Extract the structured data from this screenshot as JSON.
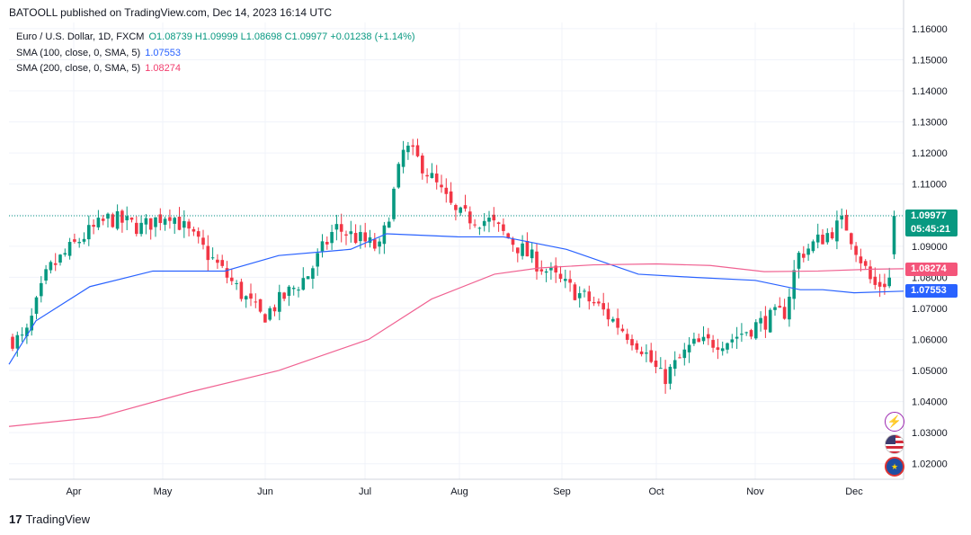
{
  "header": "BATOOLL published on TradingView.com, Dec 14, 2023 16:14 UTC",
  "legend": {
    "symbol": "Euro / U.S. Dollar, 1D, FXCM",
    "ohlc": "O1.08739  H1.09999  L1.08698  C1.09977  +0.01238 (+1.14%)",
    "sma100_label": "SMA (100, close, 0, SMA, 5)",
    "sma100_value": "1.07553",
    "sma200_label": "SMA (200, close, 0, SMA, 5)",
    "sma200_value": "1.08274"
  },
  "price_tag": {
    "price": "1.09977",
    "countdown": "05:45:21"
  },
  "sma200_tag": "1.08274",
  "sma100_tag": "1.07553",
  "footer": {
    "logo": "17",
    "brand": "TradingView"
  },
  "colors": {
    "up": "#089981",
    "down": "#f23645",
    "sma100": "#2962ff",
    "sma200": "#f06292"
  },
  "icons": [
    "flash-icon",
    "us-flag-icon",
    "eu-flag-icon"
  ],
  "chart_data": {
    "type": "candlestick",
    "title": "Euro / U.S. Dollar, 1D, FXCM",
    "ylim": [
      1.015,
      1.162
    ],
    "y_ticks": [
      "1.16000",
      "1.15000",
      "1.14000",
      "1.13000",
      "1.12000",
      "1.11000",
      "1.10000",
      "1.09000",
      "1.08000",
      "1.07000",
      "1.06000",
      "1.05000",
      "1.04000",
      "1.03000",
      "1.02000"
    ],
    "x_ticks": [
      "Apr",
      "May",
      "Jun",
      "Jul",
      "Aug",
      "Sep",
      "Oct",
      "Nov",
      "Dec"
    ],
    "last_price": 1.09977,
    "close_path_keypoints": [
      [
        "Mar 15",
        1.06
      ],
      [
        "Mar 23",
        1.082
      ],
      [
        "Apr 04",
        1.093
      ],
      [
        "Apr 13",
        1.099
      ],
      [
        "Apr 24",
        1.096
      ],
      [
        "May 03",
        1.101
      ],
      [
        "May 15",
        1.087
      ],
      [
        "May 31",
        1.067
      ],
      [
        "Jun 14",
        1.081
      ],
      [
        "Jun 22",
        1.096
      ],
      [
        "Jul 06",
        1.089
      ],
      [
        "Jul 14",
        1.122
      ],
      [
        "Jul 20",
        1.116
      ],
      [
        "Jul 31",
        1.1
      ],
      [
        "Aug 10",
        1.098
      ],
      [
        "Aug 24",
        1.085
      ],
      [
        "Sep 01",
        1.078
      ],
      [
        "Sep 12",
        1.071
      ],
      [
        "Sep 26",
        1.058
      ],
      [
        "Oct 03",
        1.047
      ],
      [
        "Oct 12",
        1.058
      ],
      [
        "Oct 24",
        1.06
      ],
      [
        "Nov 02",
        1.065
      ],
      [
        "Nov 10",
        1.069
      ],
      [
        "Nov 14",
        1.087
      ],
      [
        "Nov 28",
        1.098
      ],
      [
        "Dec 07",
        1.077
      ],
      [
        "Dec 12",
        1.079
      ],
      [
        "Dec 14",
        1.09977
      ]
    ],
    "series": [
      {
        "name": "SMA (100, close, 0, SMA, 5)",
        "last": 1.07553,
        "keypoints": [
          [
            0,
            1.052
          ],
          [
            30,
            1.066
          ],
          [
            90,
            1.077
          ],
          [
            160,
            1.082
          ],
          [
            240,
            1.082
          ],
          [
            300,
            1.087
          ],
          [
            380,
            1.089
          ],
          [
            420,
            1.094
          ],
          [
            500,
            1.093
          ],
          [
            550,
            1.093
          ],
          [
            620,
            1.089
          ],
          [
            700,
            1.081
          ],
          [
            760,
            1.08
          ],
          [
            830,
            1.079
          ],
          [
            880,
            1.076
          ],
          [
            905,
            1.076
          ],
          [
            940,
            1.075
          ],
          [
            995,
            1.07553
          ]
        ]
      },
      {
        "name": "SMA (200, close, 0, SMA, 5)",
        "last": 1.08274,
        "keypoints": [
          [
            0,
            1.032
          ],
          [
            100,
            1.035
          ],
          [
            200,
            1.043
          ],
          [
            300,
            1.05
          ],
          [
            400,
            1.06
          ],
          [
            470,
            1.073
          ],
          [
            540,
            1.081
          ],
          [
            590,
            1.083
          ],
          [
            650,
            1.084
          ],
          [
            720,
            1.0843
          ],
          [
            780,
            1.0838
          ],
          [
            840,
            1.0818
          ],
          [
            900,
            1.082
          ],
          [
            960,
            1.0826
          ],
          [
            995,
            1.08274
          ]
        ]
      }
    ]
  }
}
